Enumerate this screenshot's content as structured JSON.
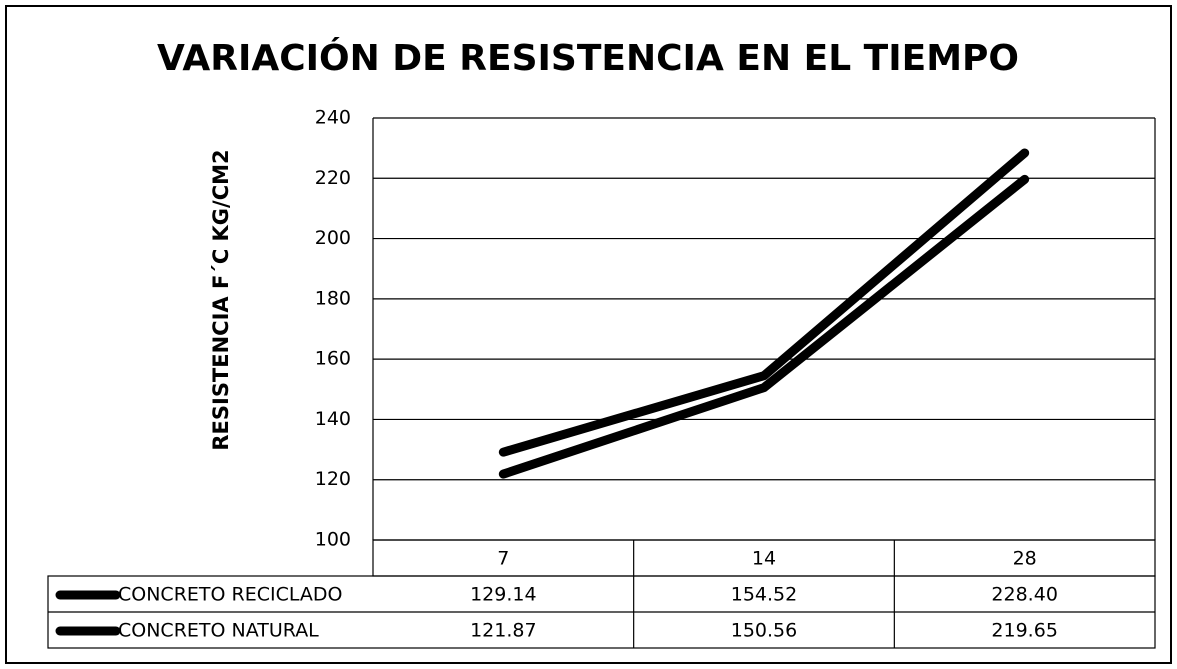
{
  "chart_data": {
    "type": "line",
    "title": "VARIACIÓN DE RESISTENCIA EN EL TIEMPO",
    "y_label": "RESISTENCIA F´C KG/CM2",
    "categories": [
      "7",
      "14",
      "28"
    ],
    "series": [
      {
        "name": "CONCRETO RECICLADO",
        "color": "#000000",
        "values": [
          129.14,
          154.52,
          228.4
        ],
        "value_labels": [
          "129.14",
          "154.52",
          "228.40"
        ]
      },
      {
        "name": "CONCRETO NATURAL",
        "color": "#000000",
        "values": [
          121.87,
          150.56,
          219.65
        ],
        "value_labels": [
          "121.87",
          "150.56",
          "219.65"
        ]
      }
    ],
    "ylim": [
      100,
      240
    ],
    "yticks": [
      100,
      120,
      140,
      160,
      180,
      200,
      220,
      240
    ],
    "grid": true
  }
}
